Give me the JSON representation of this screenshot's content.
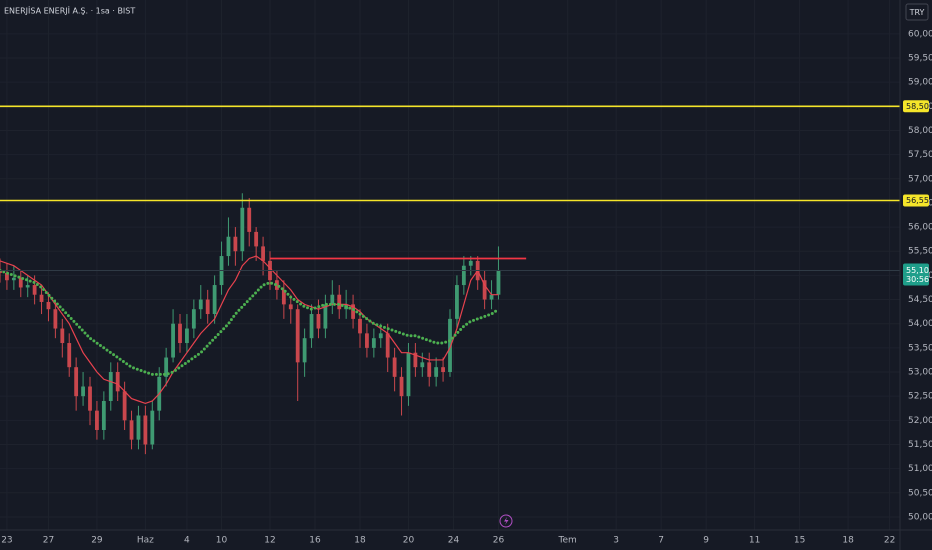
{
  "chart_data": {
    "type": "candlestick",
    "title": "ENERJİSA ENERJİ A.Ş. · 1sa · BIST",
    "currency": "TRY",
    "x": [
      0,
      1,
      2,
      3,
      4,
      5,
      6,
      7,
      8,
      9,
      10,
      11,
      12,
      13,
      14,
      15,
      16,
      17,
      18,
      19,
      20,
      21,
      22,
      23,
      24,
      25,
      26,
      27,
      28,
      29,
      30,
      31,
      32,
      33,
      34,
      35,
      36,
      37,
      38,
      39,
      40,
      41,
      42,
      43,
      44,
      45,
      46,
      47,
      48,
      49,
      50,
      51,
      52,
      53,
      54,
      55,
      56,
      57,
      58,
      59,
      60,
      61,
      62,
      63,
      64,
      65,
      66,
      67,
      68,
      69,
      70,
      71,
      72
    ],
    "open": [
      55.1,
      55.05,
      54.9,
      54.95,
      54.75,
      54.8,
      54.6,
      54.45,
      54.3,
      53.9,
      53.6,
      53.1,
      52.5,
      52.7,
      52.2,
      51.8,
      52.4,
      53.0,
      52.6,
      52.0,
      51.6,
      52.1,
      51.5,
      52.2,
      52.9,
      53.3,
      54.0,
      53.6,
      53.9,
      54.3,
      54.5,
      54.2,
      54.8,
      55.4,
      55.8,
      55.5,
      56.4,
      55.9,
      55.6,
      55.3,
      54.9,
      54.7,
      54.4,
      54.3,
      53.2,
      53.7,
      54.2,
      53.9,
      54.4,
      54.6,
      54.3,
      54.4,
      54.1,
      53.8,
      53.5,
      53.7,
      53.8,
      53.3,
      52.9,
      52.5,
      53.4,
      53.1,
      53.2,
      52.9,
      53.1,
      53.0,
      54.1,
      54.8,
      55.2,
      55.3,
      54.9,
      54.5,
      54.6
    ],
    "high": [
      55.35,
      55.25,
      55.2,
      55.1,
      55.0,
      55.0,
      54.8,
      54.65,
      54.5,
      54.1,
      53.8,
      53.3,
      53.0,
      52.9,
      52.4,
      52.6,
      53.2,
      53.2,
      52.8,
      52.2,
      52.3,
      52.3,
      52.4,
      53.1,
      53.5,
      54.3,
      54.2,
      54.2,
      54.5,
      54.8,
      54.7,
      55.0,
      55.7,
      56.2,
      56.0,
      56.7,
      56.6,
      56.0,
      55.8,
      55.5,
      55.1,
      54.9,
      54.6,
      54.4,
      53.9,
      54.4,
      54.5,
      54.6,
      54.9,
      54.8,
      54.7,
      54.6,
      54.3,
      54.0,
      53.9,
      54.0,
      54.0,
      53.5,
      53.1,
      53.6,
      53.6,
      53.4,
      53.4,
      53.3,
      53.3,
      54.3,
      55.0,
      55.4,
      55.4,
      55.4,
      55.1,
      54.9,
      55.6
    ],
    "low": [
      54.85,
      54.7,
      54.7,
      54.55,
      54.55,
      54.4,
      54.2,
      54.05,
      53.7,
      53.3,
      52.9,
      52.2,
      52.3,
      51.9,
      51.6,
      51.6,
      52.2,
      52.4,
      51.8,
      51.4,
      51.4,
      51.3,
      51.4,
      52.0,
      52.7,
      53.2,
      53.4,
      53.4,
      53.7,
      54.1,
      54.0,
      54.0,
      54.6,
      55.2,
      55.2,
      55.3,
      55.6,
      55.3,
      55.0,
      54.7,
      54.5,
      54.1,
      54.0,
      52.4,
      52.9,
      53.5,
      53.7,
      53.7,
      54.2,
      54.1,
      54.1,
      53.9,
      53.5,
      53.3,
      53.3,
      53.5,
      53.0,
      52.6,
      52.1,
      52.3,
      52.9,
      52.9,
      52.7,
      52.7,
      52.8,
      52.9,
      53.9,
      54.6,
      55.0,
      54.7,
      54.3,
      54.3,
      54.5
    ],
    "close": [
      55.05,
      54.9,
      54.95,
      54.75,
      54.8,
      54.6,
      54.45,
      54.3,
      53.9,
      53.6,
      53.1,
      52.5,
      52.7,
      52.2,
      51.8,
      52.4,
      53.0,
      52.6,
      52.0,
      51.6,
      52.1,
      51.5,
      52.2,
      52.9,
      53.3,
      54.0,
      53.6,
      53.9,
      54.3,
      54.5,
      54.2,
      54.8,
      55.4,
      55.8,
      55.5,
      56.4,
      55.9,
      55.6,
      55.3,
      54.9,
      54.7,
      54.4,
      54.3,
      53.2,
      53.7,
      54.2,
      53.9,
      54.4,
      54.6,
      54.3,
      54.4,
      54.1,
      53.8,
      53.5,
      53.7,
      53.8,
      53.3,
      52.9,
      52.5,
      53.4,
      53.1,
      53.2,
      52.9,
      53.1,
      53.0,
      54.1,
      54.8,
      55.2,
      55.3,
      54.9,
      54.5,
      54.6,
      55.1
    ],
    "up_color": "#3f9a72",
    "down_color": "#c9474d",
    "series": [
      {
        "color": "#e8424e",
        "style": "solid",
        "values": [
          55.3,
          55.25,
          55.2,
          55.1,
          55.0,
          54.9,
          54.8,
          54.6,
          54.4,
          54.2,
          54.0,
          53.7,
          53.4,
          53.2,
          53.0,
          52.85,
          52.8,
          52.75,
          52.6,
          52.45,
          52.4,
          52.35,
          52.4,
          52.55,
          52.75,
          53.0,
          53.2,
          53.4,
          53.6,
          53.8,
          53.95,
          54.1,
          54.4,
          54.7,
          54.9,
          55.2,
          55.35,
          55.4,
          55.3,
          55.15,
          55.0,
          54.85,
          54.7,
          54.5,
          54.4,
          54.35,
          54.3,
          54.35,
          54.4,
          54.4,
          54.4,
          54.35,
          54.25,
          54.1,
          54.0,
          53.9,
          53.8,
          53.6,
          53.4,
          53.4,
          53.35,
          53.3,
          53.25,
          53.25,
          53.25,
          53.5,
          53.9,
          54.4,
          54.9,
          55.1,
          54.8,
          54.6,
          54.6
        ]
      },
      {
        "color": "#4caf50",
        "style": "dotted",
        "values": [
          55.1,
          55.05,
          55.0,
          54.95,
          54.9,
          54.85,
          54.75,
          54.6,
          54.45,
          54.3,
          54.15,
          54.0,
          53.85,
          53.7,
          53.6,
          53.5,
          53.4,
          53.3,
          53.2,
          53.1,
          53.05,
          53.0,
          52.95,
          52.95,
          52.95,
          53.0,
          53.1,
          53.2,
          53.3,
          53.4,
          53.55,
          53.7,
          53.85,
          54.0,
          54.2,
          54.35,
          54.5,
          54.65,
          54.8,
          54.85,
          54.8,
          54.7,
          54.55,
          54.45,
          54.35,
          54.3,
          54.35,
          54.4,
          54.4,
          54.4,
          54.35,
          54.3,
          54.2,
          54.1,
          54.0,
          53.95,
          53.9,
          53.85,
          53.8,
          53.75,
          53.75,
          53.7,
          53.65,
          53.6,
          53.6,
          53.65,
          53.8,
          53.95,
          54.05,
          54.1,
          54.15,
          54.2,
          54.3
        ]
      }
    ],
    "hlines": [
      {
        "value": 58.5,
        "label": "58,50",
        "color": "#f5e52a"
      },
      {
        "value": 56.55,
        "label": "56,55",
        "color": "#f5e52a"
      },
      {
        "value": 55.35,
        "color": "#f23645",
        "x_start": 39,
        "x_end": 76
      }
    ],
    "last_price": {
      "value": 55.1,
      "label": "55,10",
      "countdown": "30:56",
      "color": "#1f9e8a"
    },
    "xlim": [
      0,
      130
    ],
    "ylim": [
      49.73,
      60.7
    ],
    "xticks": [
      {
        "value": 1,
        "label": "23"
      },
      {
        "value": 7,
        "label": "27"
      },
      {
        "value": 14,
        "label": "29"
      },
      {
        "value": 21,
        "label": "Haz"
      },
      {
        "value": 27,
        "label": "4"
      },
      {
        "value": 32,
        "label": "10"
      },
      {
        "value": 39,
        "label": "12"
      },
      {
        "value": 45.5,
        "label": "16"
      },
      {
        "value": 52,
        "label": "18"
      },
      {
        "value": 59,
        "label": "20"
      },
      {
        "value": 65.5,
        "label": "24"
      },
      {
        "value": 72,
        "label": "26"
      },
      {
        "value": 82,
        "label": "Tem"
      },
      {
        "value": 89,
        "label": "3"
      },
      {
        "value": 95.5,
        "label": "7"
      },
      {
        "value": 102,
        "label": "9"
      },
      {
        "value": 109,
        "label": "11"
      },
      {
        "value": 115.5,
        "label": "15"
      },
      {
        "value": 122.5,
        "label": "18"
      },
      {
        "value": 128.5,
        "label": "22"
      }
    ],
    "yticks": [
      {
        "value": 50,
        "label": "50,00"
      },
      {
        "value": 50.5,
        "label": "50,50"
      },
      {
        "value": 51,
        "label": "51,00"
      },
      {
        "value": 51.5,
        "label": "51,50"
      },
      {
        "value": 52,
        "label": "52,00"
      },
      {
        "value": 52.5,
        "label": "52,50"
      },
      {
        "value": 53,
        "label": "53,00"
      },
      {
        "value": 53.5,
        "label": "53,50"
      },
      {
        "value": 54,
        "label": "54,00"
      },
      {
        "value": 54.5,
        "label": "54,50"
      },
      {
        "value": 55,
        "label": "55,00"
      },
      {
        "value": 55.5,
        "label": "55,50"
      },
      {
        "value": 56,
        "label": "56,00"
      },
      {
        "value": 56.5,
        "label": "56,50"
      },
      {
        "value": 57,
        "label": "57,00"
      },
      {
        "value": 57.5,
        "label": "57,50"
      },
      {
        "value": 58,
        "label": "58,00"
      },
      {
        "value": 58.5,
        "label": "58,50"
      },
      {
        "value": 59,
        "label": "59,00"
      },
      {
        "value": 59.5,
        "label": "59,50"
      },
      {
        "value": 60,
        "label": "60,00"
      }
    ],
    "grid": true
  }
}
